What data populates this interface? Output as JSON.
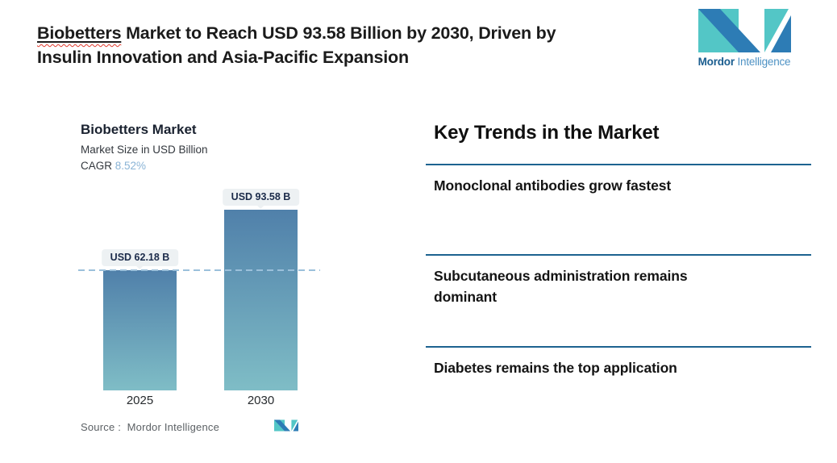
{
  "headline": {
    "word": "Biobetters",
    "line1_rest": " Market to Reach USD 93.58 Billion by 2030, Driven by",
    "line2": "Insulin Innovation and Asia-Pacific Expansion"
  },
  "brand": {
    "bold": "Mordor",
    "light": "Intelligence"
  },
  "chart": {
    "title": "Biobetters Market",
    "subtitle": "Market Size in USD Billion",
    "cagr_label": "CAGR",
    "cagr_value": "8.52%",
    "source_label": "Source :",
    "source_value": "Mordor Intelligence"
  },
  "chart_data": {
    "type": "bar",
    "title": "Biobetters Market",
    "subtitle": "Market Size in USD Billion",
    "cagr": "8.52%",
    "unit": "USD Billion",
    "categories": [
      "2025",
      "2030"
    ],
    "values": [
      62.18,
      93.58
    ],
    "value_labels": [
      "USD 62.18 B",
      "USD 93.58 B"
    ],
    "ylim": [
      0,
      100
    ],
    "grid": false,
    "reference_line": {
      "value": 62.18,
      "style": "dashed"
    },
    "bar_gradient_top": "#5080aa",
    "bar_gradient_bottom": "#7fbdc6"
  },
  "trends": {
    "title": "Key Trends in the Market",
    "items": [
      "Monoclonal antibodies grow fastest",
      "Subcutaneous administration remains dominant",
      "Diabetes remains the top application"
    ]
  },
  "colors": {
    "accent_rule": "#1d6390",
    "cagr_value": "#8ab4d6",
    "dashed_line": "#9bc0db",
    "logo_teal": "#53c6c6",
    "logo_blue": "#2d7cb5",
    "pill_bg": "#edf1f3",
    "pill_text": "#1b2b4a"
  }
}
